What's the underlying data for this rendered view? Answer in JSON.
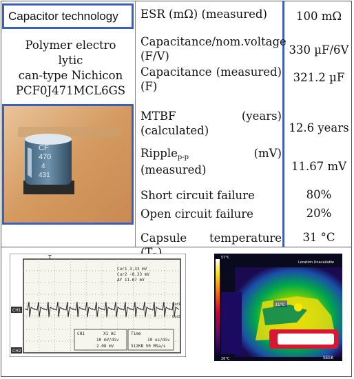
{
  "header": {
    "title": "Capacitor technology",
    "model_lines": [
      "Polymer electro",
      "lytic",
      "can-type Nichicon",
      "PCF0J471MCL6GS"
    ]
  },
  "photo": {
    "can_marking_lines": [
      "CF",
      "470",
      "4",
      "431"
    ]
  },
  "rows": [
    {
      "property": "ESR (mΩ) (measured)",
      "value": "100 mΩ"
    },
    {
      "property": "Capacitance/nom.voltage (F/V)",
      "value": "330 µF/6V"
    },
    {
      "property": "Capacitance (measured) (F)",
      "value": "321.2 µF"
    },
    {
      "property": "MTBF (years) (calculated)",
      "value": "12.6 years"
    },
    {
      "property_main": "Ripple",
      "property_sub": "p-p",
      "property_rest": " (mV) (measured)",
      "value": "11.67 mV"
    },
    {
      "property": "Short circuit failure",
      "value": "80%"
    },
    {
      "property": "Open circuit failure",
      "value": "20%"
    },
    {
      "property_main": "Capsule temperature (T",
      "property_sub": "R",
      "property_rest": ")",
      "value": "31 °C"
    }
  ],
  "oscilloscope": {
    "trigger_marker": "T",
    "readouts": [
      "Cur1 3.33 mV",
      "Cur2 -8.33 mV",
      "ΔY 11.67 mV"
    ],
    "ch1_label": "CH1",
    "ch2_label": "CH2",
    "cursor1_label": "Cur1",
    "cursor2_label": "Cur2",
    "info_left": [
      "CH1",
      "X1 AC",
      "10 mV/div",
      "2.08 mV"
    ],
    "info_right": [
      "Time",
      "10 us/div",
      "512KB  50 MSa/s"
    ]
  },
  "thermal": {
    "top_scale": "57°C",
    "bottom_scale": "26°C",
    "status": "Location Unavailable",
    "spot_reading": "31°C",
    "brand": "SEEK"
  },
  "colors": {
    "accent_blue": "#3a5fbf",
    "scope_bg": "#f6f6ee",
    "trace": "#222222"
  }
}
